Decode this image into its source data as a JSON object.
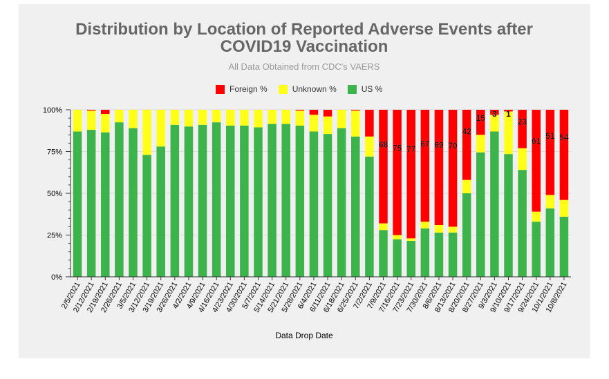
{
  "colors": {
    "foreign": "#ff0000",
    "unknown": "#ffff19",
    "us": "#3cb44b"
  },
  "chart_data": {
    "type": "bar",
    "stacked": true,
    "title": "Distribution by Location of Reported Adverse Events after\nCOVID19 Vaccination",
    "subtitle": "All Data Obtained from CDC's VAERS",
    "xlabel": "Data Drop Date",
    "ylabel": "",
    "ylim": [
      0,
      100
    ],
    "yticks": [
      "0%",
      "25%",
      "50%",
      "75%",
      "100%"
    ],
    "legend_position": "top-center",
    "grid": true,
    "categories": [
      "2/5/2021",
      "2/12/2021",
      "2/19/2021",
      "2/26/2021",
      "3/5/2021",
      "3/12/2021",
      "3/19/2021",
      "3/26/2021",
      "4/2/2021",
      "4/9/2021",
      "4/16/2021",
      "4/23/2021",
      "4/30/2021",
      "5/7/2021",
      "5/14/2021",
      "5/21/2021",
      "5/28/2021",
      "6/4/2021",
      "6/11/2021",
      "6/18/2021",
      "6/25/2021",
      "7/2/2021",
      "7/9/2021",
      "7/16/2021",
      "7/23/2021",
      "7/30/2021",
      "8/6/2021",
      "8/13/2021",
      "8/20/2021",
      "8/27/2021",
      "9/3/2021",
      "9/10/2021",
      "9/17/2021",
      "9/24/2021",
      "10/1/2021",
      "10/8/2021"
    ],
    "series": [
      {
        "name": "Foreign %",
        "values": [
          0,
          0.5,
          2.5,
          0,
          0,
          0,
          0,
          0,
          0,
          0,
          0,
          0,
          0,
          0,
          0,
          0,
          0.5,
          3,
          4,
          0,
          0.5,
          16,
          68,
          75,
          77,
          67,
          69,
          70,
          42,
          15,
          3,
          1,
          23,
          61,
          51,
          54
        ]
      },
      {
        "name": "Unknown %",
        "values": [
          13,
          11.5,
          11,
          7.5,
          11,
          27,
          22,
          9,
          10,
          9,
          7.5,
          9.5,
          9.5,
          10.5,
          8.5,
          8.5,
          9,
          10,
          10.5,
          11,
          15.5,
          12,
          4,
          2.5,
          1.5,
          4,
          4.5,
          3.5,
          8,
          10.5,
          10,
          25.5,
          13,
          6,
          8,
          10
        ]
      },
      {
        "name": "US %",
        "values": [
          87,
          88,
          86.5,
          92.5,
          89,
          73,
          78,
          91,
          90,
          91,
          92.5,
          90.5,
          90.5,
          89.5,
          91.5,
          91.5,
          90.5,
          87,
          85.5,
          89,
          84,
          72,
          28,
          22.5,
          21.5,
          29,
          26.5,
          26.5,
          50,
          74.5,
          87,
          73.5,
          64,
          33,
          41,
          36
        ]
      }
    ],
    "data_labels": [
      {
        "category": "7/9/2021",
        "text": "68"
      },
      {
        "category": "7/16/2021",
        "text": "75"
      },
      {
        "category": "7/23/2021",
        "text": "77"
      },
      {
        "category": "7/30/2021",
        "text": "67"
      },
      {
        "category": "8/6/2021",
        "text": "69"
      },
      {
        "category": "8/13/2021",
        "text": "70"
      },
      {
        "category": "8/20/2021",
        "text": "42"
      },
      {
        "category": "8/27/2021",
        "text": "15"
      },
      {
        "category": "9/3/2021",
        "text": "3"
      },
      {
        "category": "9/10/2021",
        "text": "1"
      },
      {
        "category": "9/17/2021",
        "text": "23"
      },
      {
        "category": "9/24/2021",
        "text": "61"
      },
      {
        "category": "10/1/2021",
        "text": "51"
      },
      {
        "category": "10/8/2021",
        "text": "54"
      }
    ]
  }
}
